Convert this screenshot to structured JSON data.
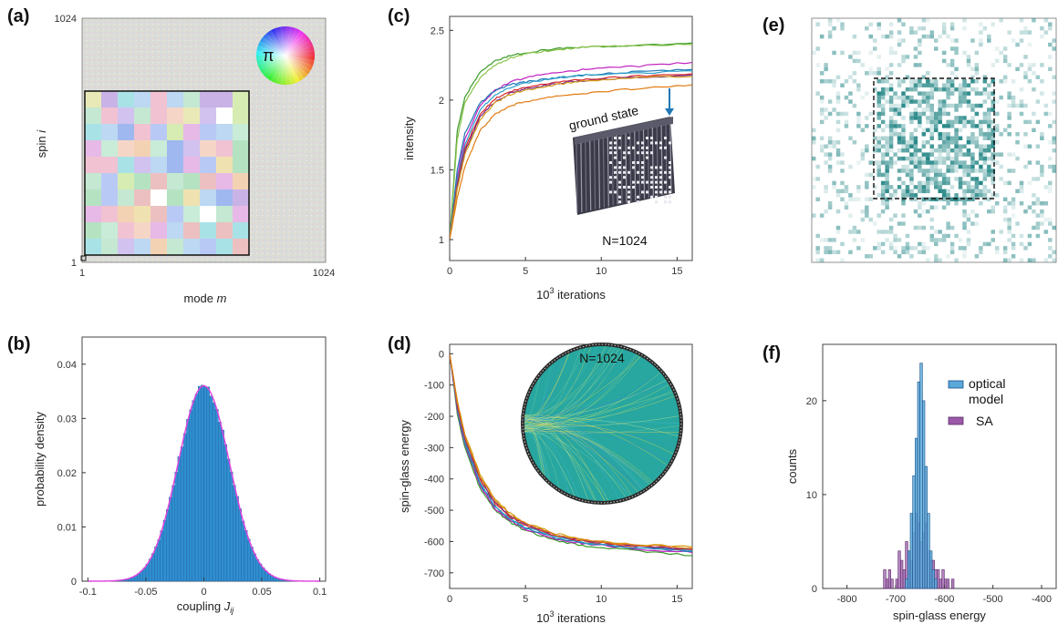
{
  "colors": {
    "hist_fill": "#2f8fd1",
    "hist_edge": "#1a4f8a",
    "gauss_fit": "#e03fe0",
    "heat": "#0f7a7a",
    "optical_fill": "#5aa9d9",
    "sa_fill": "#9a5aa8"
  },
  "chart_data": [
    {
      "id": "a",
      "panel_label": "(a)",
      "type": "heatmap",
      "title": "",
      "xlabel": "mode",
      "xlabel_var": "m",
      "ylabel": "spin",
      "ylabel_var": "i",
      "x_ticks": [
        "1",
        "1024"
      ],
      "y_ticks": [
        "1",
        "1024"
      ],
      "inset_symbol": "π",
      "colormap": "phase (hue wheel)"
    },
    {
      "id": "b",
      "panel_label": "(b)",
      "type": "bar",
      "xlabel": "coupling",
      "xlabel_var": "J",
      "xlabel_sub": "ij",
      "ylabel": "probability density",
      "xlim": [
        -0.105,
        0.105
      ],
      "ylim": [
        0,
        0.045
      ],
      "x_ticks": [
        -0.1,
        -0.05,
        0,
        0.05,
        0.1
      ],
      "x_tick_labels": [
        "-0.1",
        "-0.05",
        "0",
        "0.05",
        "0.1"
      ],
      "y_ticks": [
        0,
        0.01,
        0.02,
        0.03,
        0.04
      ],
      "y_tick_labels": [
        "0",
        "0.01",
        "0.02",
        "0.03",
        "0.04"
      ],
      "gaussian_mean": 0,
      "gaussian_sd": 0.0221,
      "peak": 0.036
    },
    {
      "id": "c",
      "panel_label": "(c)",
      "type": "line",
      "xlabel": "10",
      "xlabel_sup": "3",
      "xlabel_rest": " iterations",
      "ylabel": "intensity",
      "xlim": [
        0,
        16
      ],
      "ylim": [
        0.85,
        2.6
      ],
      "x_ticks": [
        0,
        5,
        10,
        15
      ],
      "x_tick_labels": [
        "0",
        "5",
        "10",
        "15"
      ],
      "y_ticks": [
        1,
        1.5,
        2,
        2.5
      ],
      "y_tick_labels": [
        "1",
        "1.5",
        "2",
        "2.5"
      ],
      "annotation_ground_state": "ground state",
      "annotation_n": "N=1024",
      "x": [
        0,
        0.5,
        1,
        2,
        3,
        4,
        5,
        7,
        9,
        12,
        16
      ],
      "series": [
        {
          "color": "#3a9a2a",
          "values": [
            1.0,
            1.78,
            2.02,
            2.2,
            2.28,
            2.32,
            2.34,
            2.37,
            2.38,
            2.39,
            2.41
          ]
        },
        {
          "color": "#8bc34a",
          "values": [
            1.0,
            1.72,
            1.98,
            2.16,
            2.25,
            2.3,
            2.33,
            2.36,
            2.38,
            2.39,
            2.4
          ]
        },
        {
          "color": "#c020c0",
          "values": [
            1.0,
            1.45,
            1.72,
            1.96,
            2.07,
            2.13,
            2.16,
            2.2,
            2.22,
            2.24,
            2.27
          ]
        },
        {
          "color": "#1f77b4",
          "values": [
            1.0,
            1.5,
            1.76,
            1.98,
            2.07,
            2.11,
            2.13,
            2.16,
            2.18,
            2.2,
            2.22
          ]
        },
        {
          "color": "#2ca0c8",
          "values": [
            1.0,
            1.42,
            1.68,
            1.93,
            2.04,
            2.09,
            2.12,
            2.16,
            2.18,
            2.19,
            2.21
          ]
        },
        {
          "color": "#d62728",
          "values": [
            1.0,
            1.4,
            1.65,
            1.9,
            2.01,
            2.06,
            2.09,
            2.13,
            2.15,
            2.17,
            2.19
          ]
        },
        {
          "color": "#7b2a8a",
          "values": [
            1.0,
            1.38,
            1.63,
            1.88,
            1.99,
            2.05,
            2.08,
            2.12,
            2.14,
            2.16,
            2.18
          ]
        },
        {
          "color": "#d4a017",
          "values": [
            1.0,
            1.36,
            1.61,
            1.86,
            1.98,
            2.04,
            2.07,
            2.11,
            2.14,
            2.16,
            2.17
          ]
        },
        {
          "color": "#e07b10",
          "values": [
            1.0,
            1.3,
            1.52,
            1.78,
            1.9,
            1.96,
            1.99,
            2.03,
            2.05,
            2.08,
            2.11
          ]
        }
      ]
    },
    {
      "id": "d",
      "panel_label": "(d)",
      "type": "line",
      "xlabel": "10",
      "xlabel_sup": "3",
      "xlabel_rest": " iterations",
      "ylabel": "spin-glass energy",
      "xlim": [
        0,
        16
      ],
      "ylim": [
        -750,
        30
      ],
      "x_ticks": [
        0,
        5,
        10,
        15
      ],
      "x_tick_labels": [
        "0",
        "5",
        "10",
        "15"
      ],
      "y_ticks": [
        0,
        -100,
        -200,
        -300,
        -400,
        -500,
        -600,
        -700
      ],
      "y_tick_labels": [
        "0",
        "-100",
        "-200",
        "-300",
        "-400",
        "-500",
        "-600",
        "-700"
      ],
      "annotation_n": "N=1024",
      "x": [
        0,
        0.5,
        1,
        2,
        3,
        4,
        5,
        7,
        9,
        12,
        16
      ],
      "series": [
        {
          "color": "#3a9a2a",
          "values": [
            0,
            -190,
            -300,
            -430,
            -500,
            -540,
            -565,
            -598,
            -615,
            -628,
            -645
          ]
        },
        {
          "color": "#c020c0",
          "values": [
            0,
            -180,
            -290,
            -420,
            -495,
            -535,
            -560,
            -592,
            -608,
            -622,
            -635
          ]
        },
        {
          "color": "#1f77b4",
          "values": [
            0,
            -175,
            -285,
            -415,
            -490,
            -530,
            -556,
            -589,
            -606,
            -620,
            -632
          ]
        },
        {
          "color": "#2ca0c8",
          "values": [
            0,
            -170,
            -280,
            -410,
            -488,
            -528,
            -554,
            -586,
            -603,
            -617,
            -630
          ]
        },
        {
          "color": "#d62728",
          "values": [
            0,
            -165,
            -272,
            -402,
            -480,
            -522,
            -549,
            -582,
            -600,
            -614,
            -626
          ]
        },
        {
          "color": "#7b2a8a",
          "values": [
            0,
            -160,
            -268,
            -398,
            -476,
            -519,
            -546,
            -580,
            -598,
            -612,
            -624
          ]
        },
        {
          "color": "#d4a017",
          "values": [
            0,
            -150,
            -255,
            -385,
            -465,
            -510,
            -540,
            -575,
            -595,
            -608,
            -618
          ]
        },
        {
          "color": "#e07b10",
          "values": [
            0,
            -155,
            -262,
            -392,
            -470,
            -514,
            -543,
            -578,
            -596,
            -610,
            -622
          ]
        }
      ]
    },
    {
      "id": "e",
      "panel_label": "(e)",
      "type": "heatmap",
      "title": ""
    },
    {
      "id": "f",
      "panel_label": "(f)",
      "type": "bar",
      "xlabel": "spin-glass energy",
      "ylabel": "counts",
      "xlim": [
        -850,
        -370
      ],
      "ylim": [
        0,
        26
      ],
      "x_ticks": [
        -800,
        -700,
        -600,
        -500,
        -400
      ],
      "x_tick_labels": [
        "-800",
        "-700",
        "-600",
        "-500",
        "-400"
      ],
      "y_ticks": [
        0,
        10,
        20
      ],
      "y_tick_labels": [
        "0",
        "10",
        "20"
      ],
      "bin_width": 5,
      "legend": [
        "optical model",
        "SA"
      ],
      "legend_line1": "optical",
      "legend_line2": "model",
      "legend_sa": "SA",
      "legend_position": "top-right",
      "series": [
        {
          "name": "optical model",
          "bins": [
            -680,
            -675,
            -670,
            -665,
            -660,
            -655,
            -650,
            -645,
            -640,
            -635,
            -630,
            -625,
            -620
          ],
          "counts": [
            1,
            4,
            8,
            12,
            16,
            22,
            24,
            20,
            13,
            8,
            4,
            2,
            1
          ]
        },
        {
          "name": "SA",
          "bins": [
            -730,
            -725,
            -720,
            -715,
            -710,
            -705,
            -700,
            -695,
            -690,
            -685,
            -680,
            -675,
            -670,
            -665,
            -660,
            -655,
            -650,
            -645,
            -640,
            -635,
            -630,
            -625,
            -620,
            -615,
            -610,
            -605,
            -600,
            -595,
            -590,
            -585
          ],
          "counts": [
            0,
            2,
            1,
            2,
            1,
            0,
            1,
            4,
            3,
            2,
            5,
            4,
            3,
            6,
            8,
            7,
            5,
            6,
            7,
            4,
            3,
            3,
            2,
            2,
            1,
            2,
            1,
            1,
            0,
            1
          ]
        }
      ]
    }
  ]
}
